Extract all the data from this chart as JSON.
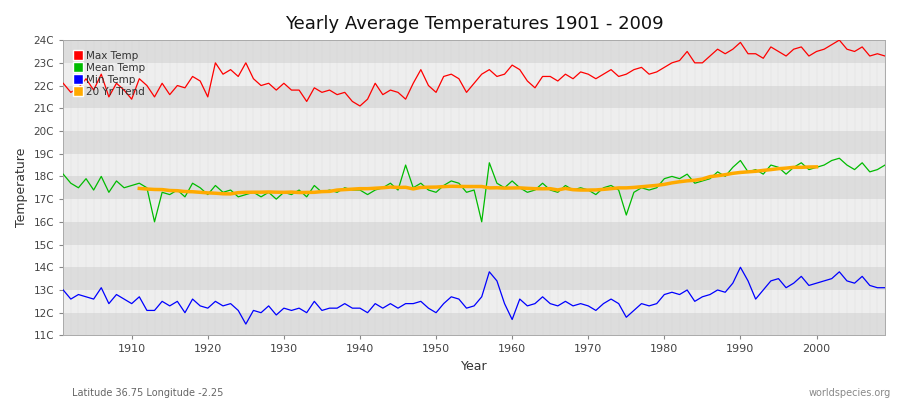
{
  "title": "Yearly Average Temperatures 1901 - 2009",
  "xlabel": "Year",
  "ylabel": "Temperature",
  "subtitle_left": "Latitude 36.75 Longitude -2.25",
  "subtitle_right": "worldspecies.org",
  "years": [
    1901,
    1902,
    1903,
    1904,
    1905,
    1906,
    1907,
    1908,
    1909,
    1910,
    1911,
    1912,
    1913,
    1914,
    1915,
    1916,
    1917,
    1918,
    1919,
    1920,
    1921,
    1922,
    1923,
    1924,
    1925,
    1926,
    1927,
    1928,
    1929,
    1930,
    1931,
    1932,
    1933,
    1934,
    1935,
    1936,
    1937,
    1938,
    1939,
    1940,
    1941,
    1942,
    1943,
    1944,
    1945,
    1946,
    1947,
    1948,
    1949,
    1950,
    1951,
    1952,
    1953,
    1954,
    1955,
    1956,
    1957,
    1958,
    1959,
    1960,
    1961,
    1962,
    1963,
    1964,
    1965,
    1966,
    1967,
    1968,
    1969,
    1970,
    1971,
    1972,
    1973,
    1974,
    1975,
    1976,
    1977,
    1978,
    1979,
    1980,
    1981,
    1982,
    1983,
    1984,
    1985,
    1986,
    1987,
    1988,
    1989,
    1990,
    1991,
    1992,
    1993,
    1994,
    1995,
    1996,
    1997,
    1998,
    1999,
    2000,
    2001,
    2002,
    2003,
    2004,
    2005,
    2006,
    2007,
    2008,
    2009
  ],
  "max_temp": [
    22.1,
    21.7,
    21.9,
    22.3,
    21.8,
    22.5,
    21.5,
    22.1,
    21.8,
    21.4,
    22.3,
    22.0,
    21.5,
    22.1,
    21.6,
    22.0,
    21.9,
    22.4,
    22.2,
    21.5,
    23.0,
    22.5,
    22.7,
    22.4,
    23.0,
    22.3,
    22.0,
    22.1,
    21.8,
    22.1,
    21.8,
    21.8,
    21.3,
    21.9,
    21.7,
    21.8,
    21.6,
    21.7,
    21.3,
    21.1,
    21.4,
    22.1,
    21.6,
    21.8,
    21.7,
    21.4,
    22.1,
    22.7,
    22.0,
    21.7,
    22.4,
    22.5,
    22.3,
    21.7,
    22.1,
    22.5,
    22.7,
    22.4,
    22.5,
    22.9,
    22.7,
    22.2,
    21.9,
    22.4,
    22.4,
    22.2,
    22.5,
    22.3,
    22.6,
    22.5,
    22.3,
    22.5,
    22.7,
    22.4,
    22.5,
    22.7,
    22.8,
    22.5,
    22.6,
    22.8,
    23.0,
    23.1,
    23.5,
    23.0,
    23.0,
    23.3,
    23.6,
    23.4,
    23.6,
    23.9,
    23.4,
    23.4,
    23.2,
    23.7,
    23.5,
    23.3,
    23.6,
    23.7,
    23.3,
    23.5,
    23.6,
    23.8,
    24.0,
    23.6,
    23.5,
    23.7,
    23.3,
    23.4,
    23.3
  ],
  "mean_temp": [
    18.1,
    17.7,
    17.5,
    17.9,
    17.4,
    18.0,
    17.3,
    17.8,
    17.5,
    17.6,
    17.7,
    17.5,
    16.0,
    17.3,
    17.2,
    17.4,
    17.1,
    17.7,
    17.5,
    17.2,
    17.6,
    17.3,
    17.4,
    17.1,
    17.2,
    17.3,
    17.1,
    17.3,
    17.0,
    17.3,
    17.2,
    17.4,
    17.1,
    17.6,
    17.3,
    17.4,
    17.3,
    17.5,
    17.4,
    17.4,
    17.2,
    17.4,
    17.5,
    17.7,
    17.4,
    18.5,
    17.5,
    17.7,
    17.4,
    17.3,
    17.6,
    17.8,
    17.7,
    17.3,
    17.4,
    16.0,
    18.6,
    17.7,
    17.5,
    17.8,
    17.5,
    17.3,
    17.4,
    17.7,
    17.4,
    17.3,
    17.6,
    17.4,
    17.5,
    17.4,
    17.2,
    17.5,
    17.6,
    17.4,
    16.3,
    17.3,
    17.5,
    17.4,
    17.5,
    17.9,
    18.0,
    17.9,
    18.1,
    17.7,
    17.8,
    17.9,
    18.2,
    18.0,
    18.4,
    18.7,
    18.2,
    18.3,
    18.1,
    18.5,
    18.4,
    18.1,
    18.4,
    18.6,
    18.3,
    18.4,
    18.5,
    18.7,
    18.8,
    18.5,
    18.3,
    18.6,
    18.2,
    18.3,
    18.5
  ],
  "min_temp": [
    13.0,
    12.6,
    12.8,
    12.7,
    12.6,
    13.1,
    12.4,
    12.8,
    12.6,
    12.4,
    12.7,
    12.1,
    12.1,
    12.5,
    12.3,
    12.5,
    12.0,
    12.6,
    12.3,
    12.2,
    12.5,
    12.3,
    12.4,
    12.1,
    11.5,
    12.1,
    12.0,
    12.3,
    11.9,
    12.2,
    12.1,
    12.2,
    12.0,
    12.5,
    12.1,
    12.2,
    12.2,
    12.4,
    12.2,
    12.2,
    12.0,
    12.4,
    12.2,
    12.4,
    12.2,
    12.4,
    12.4,
    12.5,
    12.2,
    12.0,
    12.4,
    12.7,
    12.6,
    12.2,
    12.3,
    12.7,
    13.8,
    13.4,
    12.4,
    11.7,
    12.6,
    12.3,
    12.4,
    12.7,
    12.4,
    12.3,
    12.5,
    12.3,
    12.4,
    12.3,
    12.1,
    12.4,
    12.6,
    12.4,
    11.8,
    12.1,
    12.4,
    12.3,
    12.4,
    12.8,
    12.9,
    12.8,
    13.0,
    12.5,
    12.7,
    12.8,
    13.0,
    12.9,
    13.3,
    14.0,
    13.4,
    12.6,
    13.0,
    13.4,
    13.5,
    13.1,
    13.3,
    13.6,
    13.2,
    13.3,
    13.4,
    13.5,
    13.8,
    13.4,
    13.3,
    13.6,
    13.2,
    13.1,
    13.1
  ],
  "bg_color": "#ffffff",
  "plot_bg_light": "#eeeeee",
  "plot_bg_dark": "#dddddd",
  "max_color": "#ff0000",
  "mean_color": "#00bb00",
  "min_color": "#0000ff",
  "trend_color": "#ffaa00",
  "ylim_min": 11,
  "ylim_max": 24,
  "ytick_labels": [
    "11C",
    "12C",
    "13C",
    "14C",
    "15C",
    "16C",
    "17C",
    "18C",
    "19C",
    "20C",
    "21C",
    "22C",
    "23C",
    "24C"
  ],
  "legend_labels": [
    "Max Temp",
    "Mean Temp",
    "Min Temp",
    "20 Yr Trend"
  ],
  "legend_colors": [
    "#ff0000",
    "#00bb00",
    "#0000ff",
    "#ffaa00"
  ],
  "grid_color": "#cccccc",
  "trend_window": 20
}
